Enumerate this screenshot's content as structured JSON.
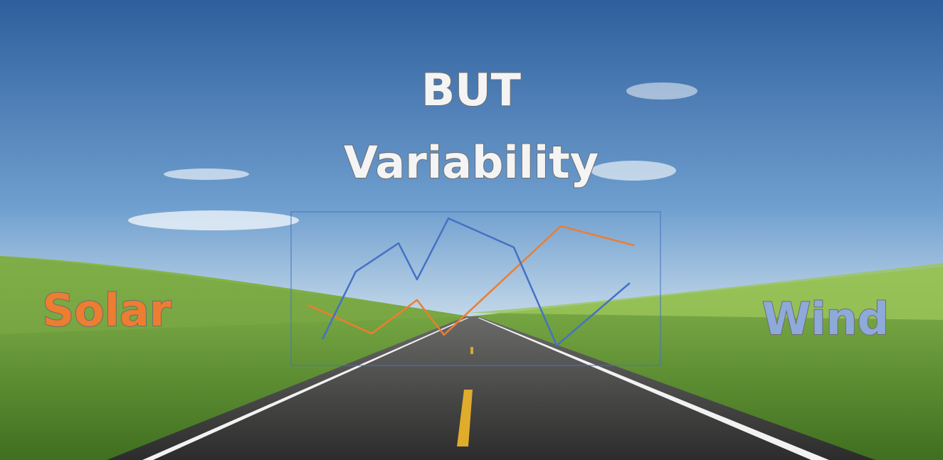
{
  "slide": {
    "title": "BUT",
    "subtitle": "Variability"
  },
  "chart_data": {
    "type": "line",
    "xlim": [
      0,
      100
    ],
    "ylim": [
      0,
      100
    ],
    "series": [
      {
        "name": "Solar",
        "color": "#ed7d31",
        "x": [
          4.6,
          21.8,
          34.1,
          41.4,
          73.0,
          92.9
        ],
        "values": [
          39.4,
          20.8,
          42.6,
          19.9,
          90.7,
          78.2
        ]
      },
      {
        "name": "Wind",
        "color": "#4472c4",
        "x": [
          8.5,
          17.5,
          29.1,
          34.1,
          42.6,
          60.3,
          71.9,
          91.7
        ],
        "values": [
          17.1,
          61.1,
          79.6,
          56.0,
          95.8,
          76.9,
          13.0,
          53.7
        ]
      }
    ]
  }
}
